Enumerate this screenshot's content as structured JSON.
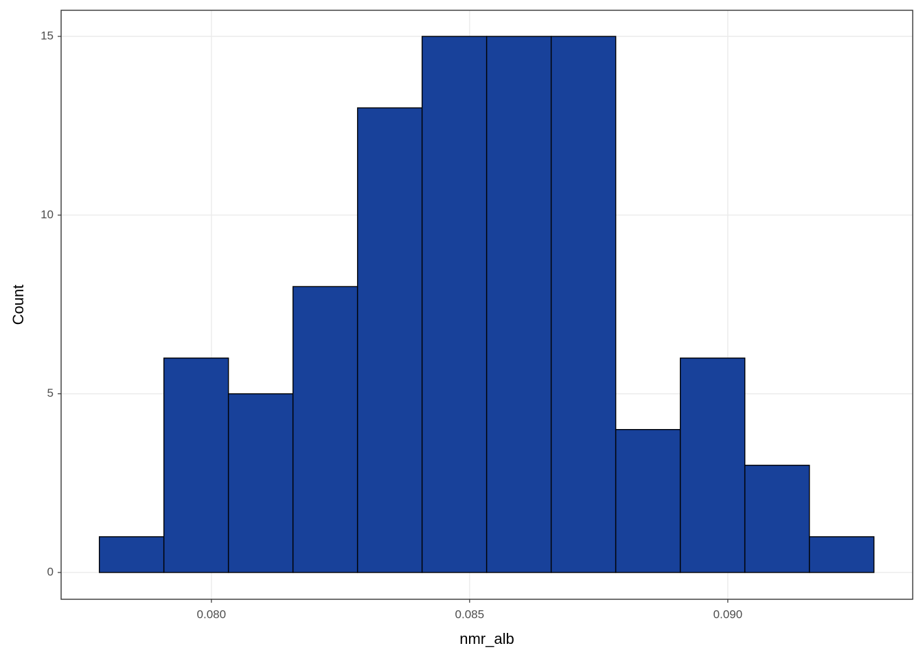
{
  "chart_data": {
    "type": "histogram",
    "x_label": "nmr_alb",
    "y_label": "Count",
    "bins": [
      0.07783,
      0.07908,
      0.08033,
      0.08158,
      0.08283,
      0.08408,
      0.08533,
      0.08658,
      0.08783,
      0.08908,
      0.09033,
      0.09158,
      0.09283
    ],
    "values": [
      1,
      6,
      5,
      8,
      13,
      15,
      15,
      15,
      4,
      6,
      3,
      1
    ],
    "color": "#18419a",
    "edge_color": "#000000",
    "xlim": [
      0.07709,
      0.09358
    ],
    "ylim": [
      -0.75,
      15.73
    ],
    "xticks": [
      {
        "value": 0.08,
        "label": "0.080"
      },
      {
        "value": 0.085,
        "label": "0.085"
      },
      {
        "value": 0.09,
        "label": "0.090"
      }
    ],
    "yticks": [
      0,
      5,
      10,
      15
    ],
    "grid": true
  }
}
